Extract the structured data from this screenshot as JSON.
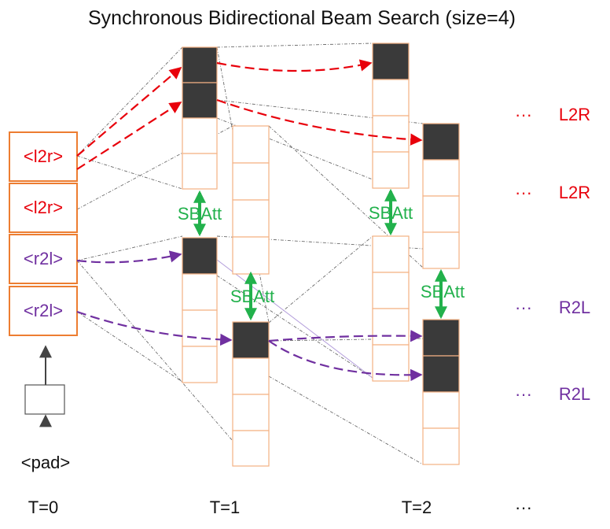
{
  "title": "Synchronous Bidirectional  Beam Search (size=4)",
  "start_tokens": [
    "<l2r>",
    "<l2r>",
    "<r2l>",
    "<r2l>"
  ],
  "pad_label": "<pad>",
  "attention_label": "SBAtt",
  "direction_labels": [
    {
      "dots": "···",
      "text": "L2R"
    },
    {
      "dots": "···",
      "text": "L2R"
    },
    {
      "dots": "···",
      "text": "R2L"
    },
    {
      "dots": "···",
      "text": "R2L"
    }
  ],
  "time_labels": [
    "T=0",
    "T=1",
    "T=2",
    "···"
  ],
  "colors": {
    "l2r": "#e8000b",
    "r2l": "#7030a0",
    "sbatt": "#22b14c",
    "cell_border": "#f4b183",
    "token_border": "#ed7d31",
    "active_cell": "#3a3a3a"
  }
}
